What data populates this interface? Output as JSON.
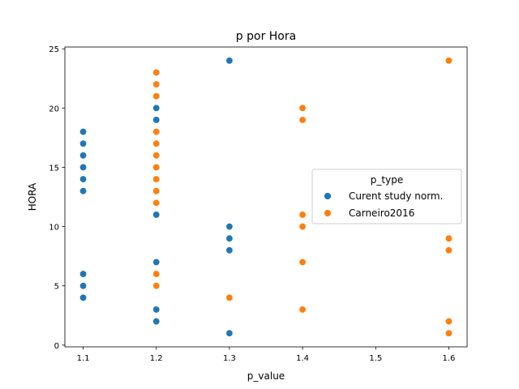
{
  "chart_data": {
    "type": "scatter",
    "title": "p por Hora",
    "xlabel": "p_value",
    "ylabel": "HORA",
    "xlim": [
      1.075,
      1.625
    ],
    "ylim": [
      -0.15,
      25.15
    ],
    "xticks": [
      "1.1",
      "1.2",
      "1.3",
      "1.4",
      "1.5",
      "1.6"
    ],
    "yticks": [
      "0",
      "5",
      "10",
      "15",
      "20",
      "25"
    ],
    "grid": false,
    "legend": {
      "title": "p_type",
      "placement": "center-right"
    },
    "series": [
      {
        "name": "Curent study norm.",
        "color": "#1f77b4",
        "points": [
          [
            1.1,
            18
          ],
          [
            1.1,
            17
          ],
          [
            1.1,
            16
          ],
          [
            1.1,
            15
          ],
          [
            1.1,
            14
          ],
          [
            1.1,
            13
          ],
          [
            1.1,
            6
          ],
          [
            1.1,
            5
          ],
          [
            1.1,
            4
          ],
          [
            1.2,
            20
          ],
          [
            1.2,
            19
          ],
          [
            1.2,
            11
          ],
          [
            1.2,
            7
          ],
          [
            1.2,
            3
          ],
          [
            1.2,
            2
          ],
          [
            1.3,
            24
          ],
          [
            1.3,
            10
          ],
          [
            1.3,
            9
          ],
          [
            1.3,
            8
          ],
          [
            1.3,
            1
          ]
        ]
      },
      {
        "name": "Carneiro2016",
        "color": "#ff7f0e",
        "points": [
          [
            1.2,
            23
          ],
          [
            1.2,
            22
          ],
          [
            1.2,
            21
          ],
          [
            1.2,
            18
          ],
          [
            1.2,
            17
          ],
          [
            1.2,
            16
          ],
          [
            1.2,
            15
          ],
          [
            1.2,
            14
          ],
          [
            1.2,
            13
          ],
          [
            1.2,
            12
          ],
          [
            1.2,
            6
          ],
          [
            1.2,
            5
          ],
          [
            1.3,
            4
          ],
          [
            1.4,
            20
          ],
          [
            1.4,
            19
          ],
          [
            1.4,
            11
          ],
          [
            1.4,
            10
          ],
          [
            1.4,
            7
          ],
          [
            1.4,
            3
          ],
          [
            1.6,
            24
          ],
          [
            1.6,
            9
          ],
          [
            1.6,
            8
          ],
          [
            1.6,
            2
          ],
          [
            1.6,
            1
          ]
        ]
      }
    ]
  }
}
